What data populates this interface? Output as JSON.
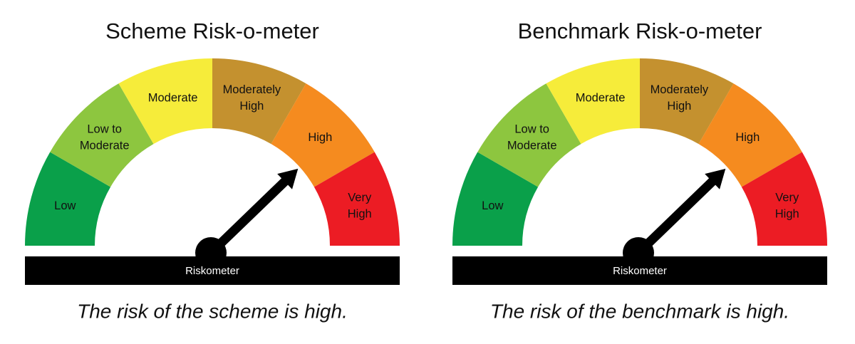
{
  "panels": [
    {
      "title": "Scheme Risk-o-meter",
      "segments": [
        [
          "Low"
        ],
        [
          "Low to",
          "Moderate"
        ],
        [
          "Moderate"
        ],
        [
          "Moderately",
          "High"
        ],
        [
          "High"
        ],
        [
          "Very",
          "High"
        ]
      ],
      "bar_label": "Riskometer",
      "caption": "The risk of the scheme is high."
    },
    {
      "title": "Benchmark Risk-o-meter",
      "segments": [
        [
          "Low"
        ],
        [
          "Low to",
          "Moderate"
        ],
        [
          "Moderate"
        ],
        [
          "Moderately",
          "High"
        ],
        [
          "High"
        ],
        [
          "Very",
          "High"
        ]
      ],
      "bar_label": "Riskometer",
      "caption": "The risk of the benchmark is high."
    }
  ]
}
